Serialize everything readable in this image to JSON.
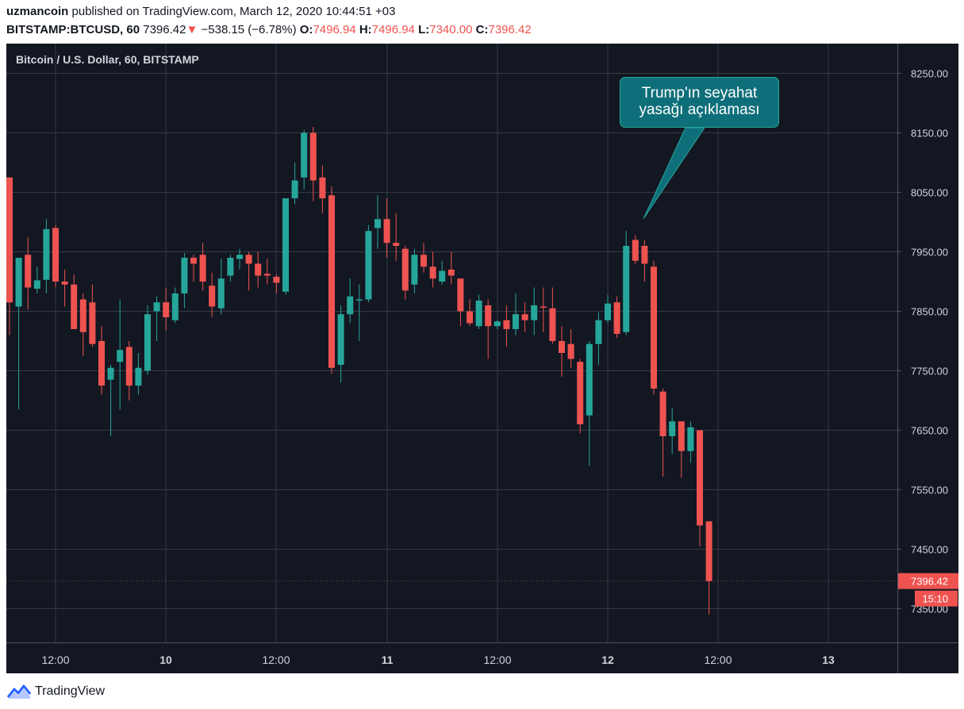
{
  "header": {
    "author": "uzmancoin",
    "published_text": "published on TradingView.com, March 12, 2020 10:44:51 +03",
    "symbol": "BITSTAMP:BTCUSD, 60",
    "price": "7396.42",
    "change_arrow": "▼",
    "change": "−538.15 (−6.78%)",
    "o_label": "O:",
    "o_value": "7496.94",
    "h_label": "H:",
    "h_value": "7496.94",
    "l_label": "L:",
    "l_value": "7340.00",
    "c_label": "C:",
    "c_value": "7396.42"
  },
  "chart_title": "Bitcoin / U.S. Dollar, 60, BITSTAMP",
  "callout": {
    "line1": "Trump'ın seyahat",
    "line2": "yasağı açıklaması"
  },
  "footer": {
    "brand": "TradingView"
  },
  "colors": {
    "up": "#26a69a",
    "down": "#ef5350",
    "background": "#131722",
    "grid": "#363a45",
    "axis_text": "#d1d4dc"
  },
  "chart_data": {
    "type": "candlestick",
    "title": "Bitcoin / U.S. Dollar, 60, BITSTAMP",
    "interval_minutes": 60,
    "ylim": [
      7290,
      8340
    ],
    "y_ticks": [
      "8250.00",
      "8150.00",
      "8050.00",
      "7950.00",
      "7850.00",
      "7750.00",
      "7650.00",
      "7550.00",
      "7450.00",
      "7350.00"
    ],
    "x_ticks": [
      "12:00",
      "10",
      "12:00",
      "11",
      "12:00",
      "12",
      "12:00",
      "13"
    ],
    "last_price_label": "7396.42",
    "countdown_label": "15:10",
    "candles": [
      {
        "o": 8075,
        "h": 8075,
        "l": 7810,
        "c": 7865
      },
      {
        "o": 7858,
        "h": 7935,
        "l": 7685,
        "c": 7940
      },
      {
        "o": 7945,
        "h": 7975,
        "l": 7853,
        "c": 7890
      },
      {
        "o": 7888,
        "h": 7925,
        "l": 7880,
        "c": 7902
      },
      {
        "o": 7903,
        "h": 8005,
        "l": 7880,
        "c": 7988
      },
      {
        "o": 7990,
        "h": 7995,
        "l": 7890,
        "c": 7900
      },
      {
        "o": 7900,
        "h": 7920,
        "l": 7858,
        "c": 7895
      },
      {
        "o": 7895,
        "h": 7912,
        "l": 7825,
        "c": 7820
      },
      {
        "o": 7870,
        "h": 7880,
        "l": 7775,
        "c": 7815
      },
      {
        "o": 7865,
        "h": 7895,
        "l": 7790,
        "c": 7795
      },
      {
        "o": 7800,
        "h": 7825,
        "l": 7710,
        "c": 7725
      },
      {
        "o": 7735,
        "h": 7760,
        "l": 7640,
        "c": 7755
      },
      {
        "o": 7765,
        "h": 7870,
        "l": 7685,
        "c": 7785
      },
      {
        "o": 7790,
        "h": 7800,
        "l": 7700,
        "c": 7725
      },
      {
        "o": 7725,
        "h": 7780,
        "l": 7710,
        "c": 7755
      },
      {
        "o": 7750,
        "h": 7860,
        "l": 7743,
        "c": 7845
      },
      {
        "o": 7850,
        "h": 7875,
        "l": 7800,
        "c": 7865
      },
      {
        "o": 7865,
        "h": 7890,
        "l": 7818,
        "c": 7840
      },
      {
        "o": 7835,
        "h": 7890,
        "l": 7830,
        "c": 7880
      },
      {
        "o": 7880,
        "h": 7948,
        "l": 7855,
        "c": 7940
      },
      {
        "o": 7940,
        "h": 7945,
        "l": 7900,
        "c": 7930
      },
      {
        "o": 7945,
        "h": 7965,
        "l": 7885,
        "c": 7900
      },
      {
        "o": 7893,
        "h": 7915,
        "l": 7840,
        "c": 7858
      },
      {
        "o": 7855,
        "h": 7938,
        "l": 7845,
        "c": 7905
      },
      {
        "o": 7910,
        "h": 7945,
        "l": 7900,
        "c": 7940
      },
      {
        "o": 7938,
        "h": 7955,
        "l": 7920,
        "c": 7945
      },
      {
        "o": 7945,
        "h": 7950,
        "l": 7885,
        "c": 7930
      },
      {
        "o": 7930,
        "h": 7950,
        "l": 7890,
        "c": 7910
      },
      {
        "o": 7913,
        "h": 7938,
        "l": 7895,
        "c": 7910
      },
      {
        "o": 7908,
        "h": 7912,
        "l": 7880,
        "c": 7898
      },
      {
        "o": 7883,
        "h": 8030,
        "l": 7878,
        "c": 8040
      },
      {
        "o": 8040,
        "h": 8100,
        "l": 8030,
        "c": 8070
      },
      {
        "o": 8075,
        "h": 8155,
        "l": 8055,
        "c": 8150
      },
      {
        "o": 8150,
        "h": 8160,
        "l": 8035,
        "c": 8070
      },
      {
        "o": 8075,
        "h": 8095,
        "l": 8015,
        "c": 8040
      },
      {
        "o": 8045,
        "h": 8060,
        "l": 7745,
        "c": 7755
      },
      {
        "o": 7760,
        "h": 7860,
        "l": 7730,
        "c": 7845
      },
      {
        "o": 7845,
        "h": 7905,
        "l": 7830,
        "c": 7875
      },
      {
        "o": 7870,
        "h": 7895,
        "l": 7800,
        "c": 7870
      },
      {
        "o": 7870,
        "h": 7995,
        "l": 7865,
        "c": 7985
      },
      {
        "o": 7990,
        "h": 8045,
        "l": 7955,
        "c": 8005
      },
      {
        "o": 8005,
        "h": 8040,
        "l": 7940,
        "c": 7965
      },
      {
        "o": 7965,
        "h": 8015,
        "l": 7935,
        "c": 7960
      },
      {
        "o": 7955,
        "h": 7960,
        "l": 7870,
        "c": 7885
      },
      {
        "o": 7895,
        "h": 7955,
        "l": 7880,
        "c": 7945
      },
      {
        "o": 7945,
        "h": 7965,
        "l": 7915,
        "c": 7925
      },
      {
        "o": 7925,
        "h": 7950,
        "l": 7890,
        "c": 7905
      },
      {
        "o": 7900,
        "h": 7935,
        "l": 7895,
        "c": 7918
      },
      {
        "o": 7920,
        "h": 7950,
        "l": 7895,
        "c": 7910
      },
      {
        "o": 7905,
        "h": 7905,
        "l": 7825,
        "c": 7850
      },
      {
        "o": 7850,
        "h": 7870,
        "l": 7825,
        "c": 7830
      },
      {
        "o": 7825,
        "h": 7878,
        "l": 7820,
        "c": 7868
      },
      {
        "o": 7860,
        "h": 7870,
        "l": 7770,
        "c": 7825
      },
      {
        "o": 7825,
        "h": 7835,
        "l": 7820,
        "c": 7833
      },
      {
        "o": 7835,
        "h": 7860,
        "l": 7790,
        "c": 7820
      },
      {
        "o": 7820,
        "h": 7880,
        "l": 7810,
        "c": 7845
      },
      {
        "o": 7845,
        "h": 7865,
        "l": 7815,
        "c": 7835
      },
      {
        "o": 7835,
        "h": 7890,
        "l": 7810,
        "c": 7860
      },
      {
        "o": 7858,
        "h": 7890,
        "l": 7815,
        "c": 7857
      },
      {
        "o": 7855,
        "h": 7890,
        "l": 7795,
        "c": 7800
      },
      {
        "o": 7800,
        "h": 7825,
        "l": 7740,
        "c": 7780
      },
      {
        "o": 7795,
        "h": 7820,
        "l": 7755,
        "c": 7770
      },
      {
        "o": 7765,
        "h": 7770,
        "l": 7645,
        "c": 7660
      },
      {
        "o": 7675,
        "h": 7800,
        "l": 7590,
        "c": 7795
      },
      {
        "o": 7795,
        "h": 7848,
        "l": 7760,
        "c": 7835
      },
      {
        "o": 7835,
        "h": 7878,
        "l": 7830,
        "c": 7863
      },
      {
        "o": 7865,
        "h": 7875,
        "l": 7805,
        "c": 7812
      },
      {
        "o": 7815,
        "h": 7985,
        "l": 7810,
        "c": 7960
      },
      {
        "o": 7970,
        "h": 7978,
        "l": 7930,
        "c": 7935
      },
      {
        "o": 7960,
        "h": 7970,
        "l": 7900,
        "c": 7930
      },
      {
        "o": 7925,
        "h": 7935,
        "l": 7710,
        "c": 7720
      },
      {
        "o": 7715,
        "h": 7720,
        "l": 7572,
        "c": 7640
      },
      {
        "o": 7640,
        "h": 7688,
        "l": 7610,
        "c": 7665
      },
      {
        "o": 7665,
        "h": 7665,
        "l": 7570,
        "c": 7615
      },
      {
        "o": 7615,
        "h": 7665,
        "l": 7595,
        "c": 7655
      },
      {
        "o": 7650,
        "h": 7650,
        "l": 7455,
        "c": 7490
      },
      {
        "o": 7496.94,
        "h": 7496.94,
        "l": 7340,
        "c": 7396.42
      }
    ]
  }
}
